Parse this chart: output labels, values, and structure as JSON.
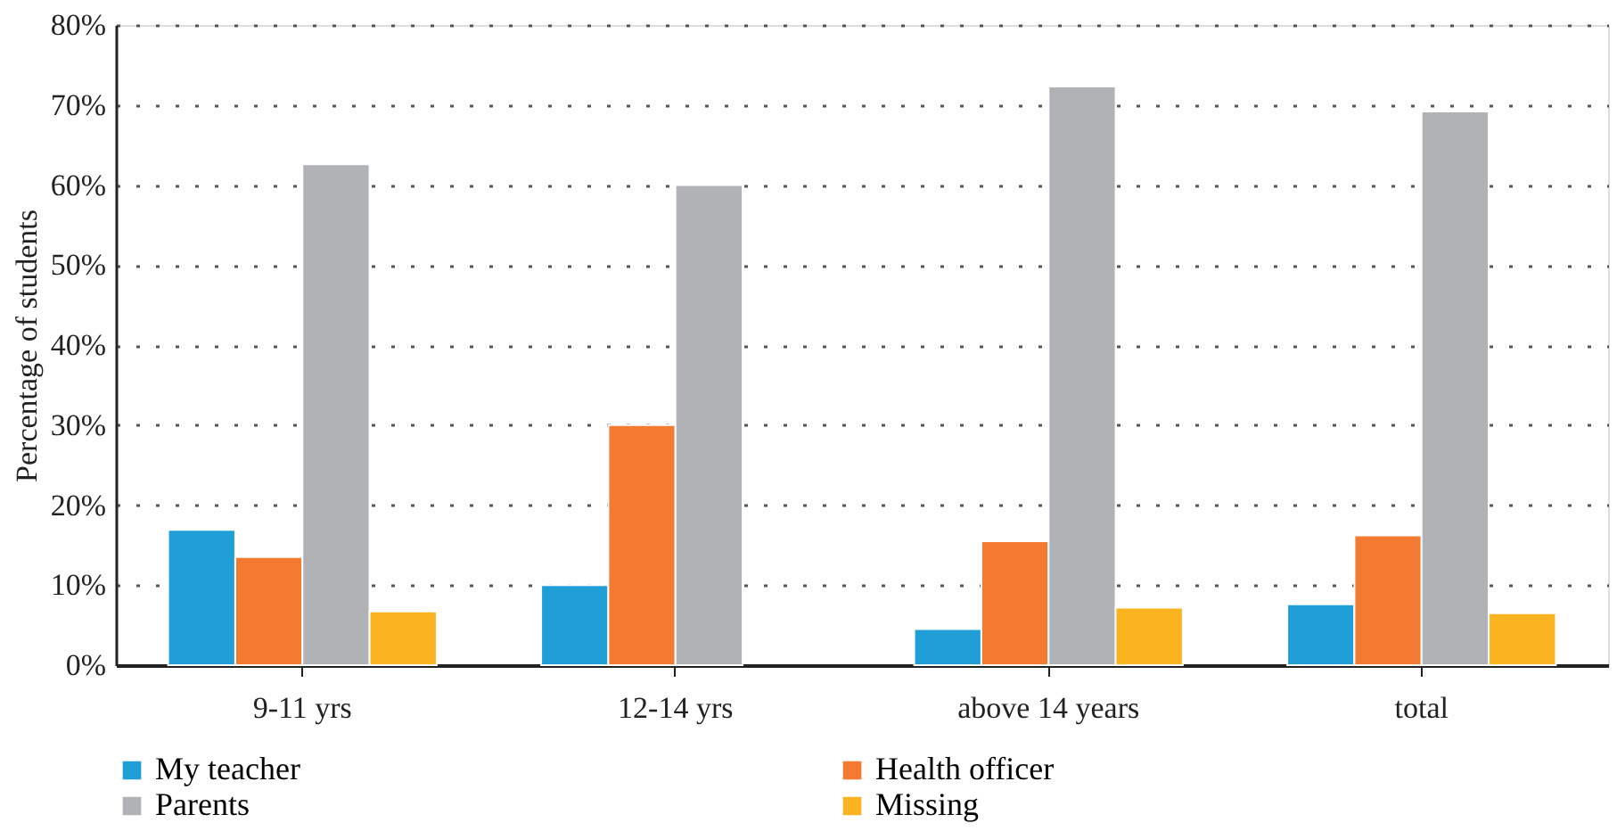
{
  "chart_data": {
    "type": "bar",
    "ylabel": "Percentage of students",
    "categories": [
      "9-11 yrs",
      "12-14 yrs",
      "above 14 years",
      "total"
    ],
    "series": [
      {
        "name": "My teacher",
        "color": "#1f9ed8",
        "values": [
          16.9,
          10.0,
          4.5,
          7.6
        ]
      },
      {
        "name": "Health officer",
        "color": "#f37a30",
        "values": [
          13.5,
          30.0,
          15.5,
          16.2
        ]
      },
      {
        "name": "Parents",
        "color": "#b1b2b5",
        "values": [
          62.6,
          60.0,
          72.3,
          69.2
        ]
      },
      {
        "name": "Missing",
        "color": "#fbb41f",
        "values": [
          6.7,
          null,
          7.2,
          6.5
        ]
      }
    ],
    "ylim": [
      0,
      80
    ],
    "yticks": [
      {
        "value": 0,
        "label": "0%"
      },
      {
        "value": 10,
        "label": "10%"
      },
      {
        "value": 20,
        "label": "20%"
      },
      {
        "value": 30,
        "label": "30%"
      },
      {
        "value": 40,
        "label": "40%"
      },
      {
        "value": 50,
        "label": "50%"
      },
      {
        "value": 60,
        "label": "60%"
      },
      {
        "value": 70,
        "label": "70%"
      },
      {
        "value": 80,
        "label": "80%"
      }
    ],
    "grid": "y",
    "legend": "bottom"
  }
}
